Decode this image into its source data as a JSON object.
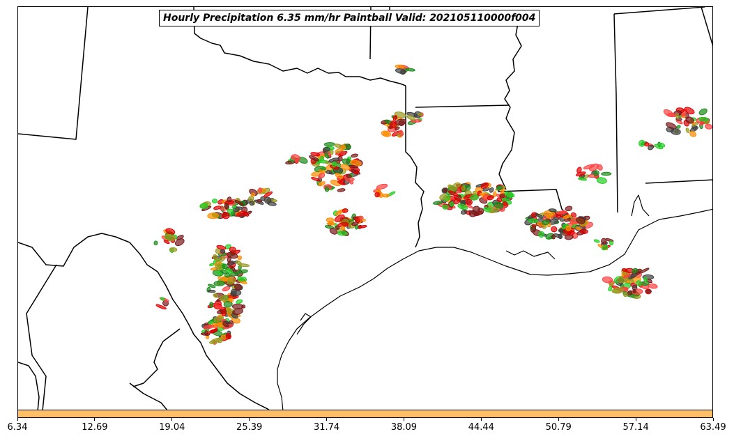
{
  "title": "Hourly Precipitation 6.35 mm/hr Paintball Valid: 202105110000f004",
  "colorbar": {
    "color": "#ffbf66",
    "tick_labels": [
      "6.34",
      "12.69",
      "19.04",
      "25.39",
      "31.74",
      "38.09",
      "44.44",
      "50.79",
      "57.14",
      "63.49"
    ]
  },
  "colors": {
    "ensemble_members": [
      "#e00000",
      "#ff4040",
      "#ff8c00",
      "#1a8c1a",
      "#22cc22",
      "#9a9a20",
      "#7a1a1a",
      "#404040"
    ],
    "coastline": "#000000",
    "boundaries": "#000000"
  },
  "map": {
    "region": "Southern Plains / Gulf Coast",
    "features": [
      "coastline-icon",
      "state-borders-icon",
      "country-border-icon",
      "precipitation-paintball-icon"
    ]
  }
}
